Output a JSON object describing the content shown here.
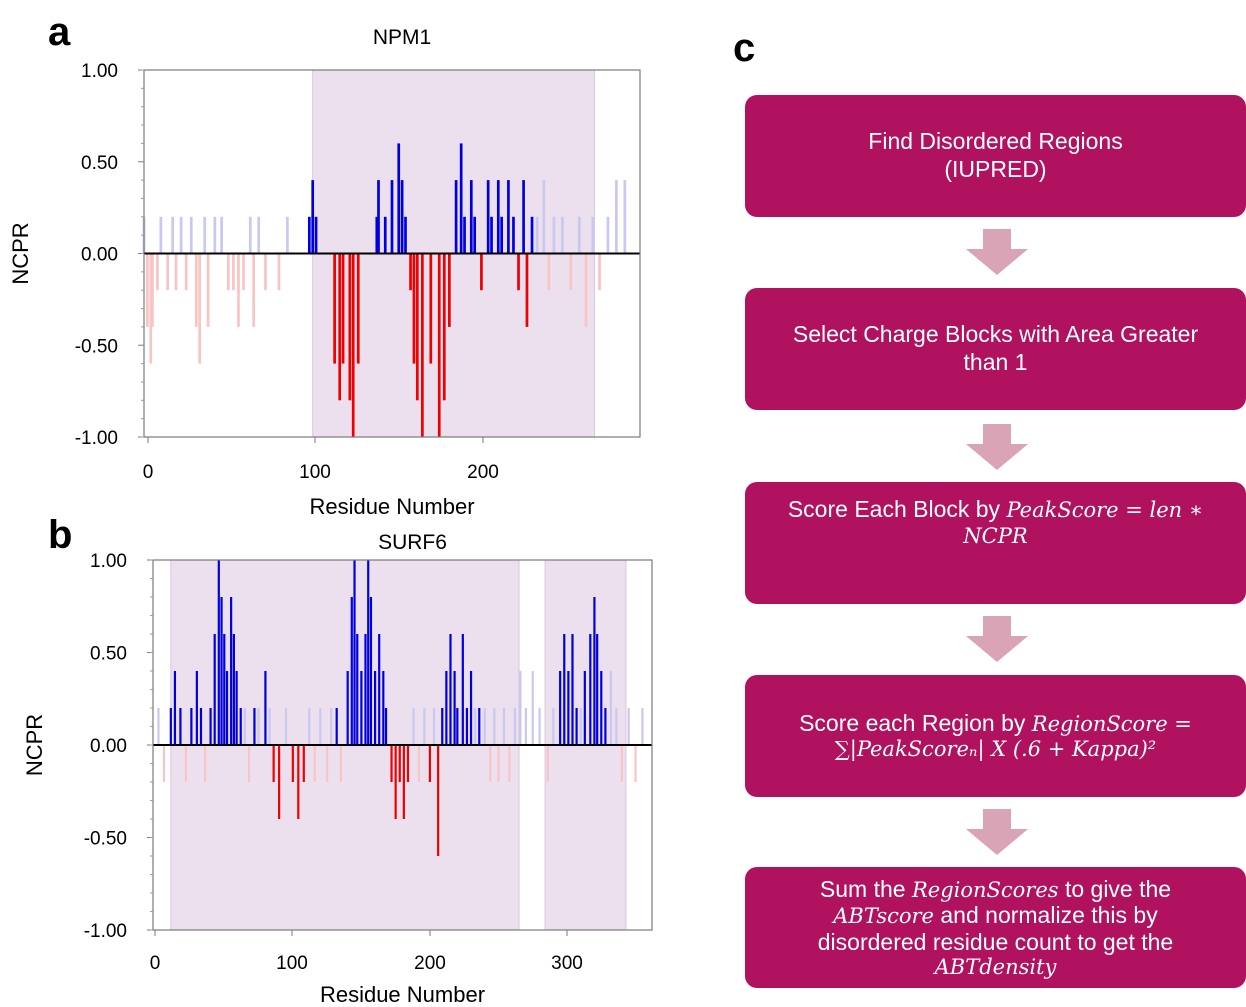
{
  "panels": {
    "a": "a",
    "b": "b",
    "c": "c"
  },
  "colors": {
    "pos_strong": "#0000dd",
    "pos_faint": "#c8c8f0",
    "neg_strong": "#ee0000",
    "neg_faint": "#f8c4c4",
    "shade": "#ede0ee",
    "shade_border": "#dcc4de",
    "flow_box": "#b0125f",
    "flow_arrow": "#d8a4b6"
  },
  "chart_data": [
    {
      "type": "bar",
      "title": "NPM1",
      "xlabel": "Residue Number",
      "ylabel": "NCPR",
      "xlim": [
        0,
        294
      ],
      "ylim": [
        -1,
        1
      ],
      "xticks": [
        "0",
        "100",
        "200"
      ],
      "yticks": [
        "1.00",
        "0.50",
        "0.00",
        "-0.50",
        "-1.00"
      ],
      "disordered_regions": [
        [
          100,
          267
        ]
      ],
      "bars": [
        [
          0,
          0.2,
          0
        ],
        [
          2,
          -0.4,
          0
        ],
        [
          4,
          -0.6,
          0
        ],
        [
          5,
          -0.4,
          0
        ],
        [
          8,
          -0.2,
          0
        ],
        [
          10,
          0.2,
          0
        ],
        [
          14,
          -0.2,
          0
        ],
        [
          17,
          0.2,
          0
        ],
        [
          19,
          -0.2,
          0
        ],
        [
          22,
          0.2,
          0
        ],
        [
          25,
          -0.2,
          0
        ],
        [
          28,
          0.2,
          0
        ],
        [
          31,
          -0.4,
          0
        ],
        [
          33,
          -0.6,
          0
        ],
        [
          36,
          0.2,
          0
        ],
        [
          38,
          -0.4,
          0
        ],
        [
          42,
          0.2,
          0
        ],
        [
          46,
          0.2,
          0
        ],
        [
          50,
          -0.2,
          0
        ],
        [
          53,
          -0.2,
          0
        ],
        [
          56,
          -0.4,
          0
        ],
        [
          59,
          -0.2,
          0
        ],
        [
          63,
          0.2,
          0
        ],
        [
          65,
          -0.4,
          0
        ],
        [
          68,
          0.2,
          0
        ],
        [
          72,
          -0.2,
          0
        ],
        [
          80,
          -0.2,
          0
        ],
        [
          85,
          0.2,
          0
        ],
        [
          98,
          0.2,
          1
        ],
        [
          100,
          0.4,
          1
        ],
        [
          102,
          0.2,
          1
        ],
        [
          113,
          -0.6,
          1
        ],
        [
          116,
          -0.8,
          1
        ],
        [
          118,
          -0.6,
          1
        ],
        [
          122,
          -0.8,
          1
        ],
        [
          124,
          -1.0,
          1
        ],
        [
          127,
          -0.6,
          1
        ],
        [
          138,
          0.2,
          1
        ],
        [
          139,
          0.4,
          1
        ],
        [
          143,
          0.2,
          1
        ],
        [
          147,
          0.4,
          1
        ],
        [
          151,
          0.6,
          1
        ],
        [
          153,
          0.4,
          1
        ],
        [
          155,
          0.2,
          1
        ],
        [
          158,
          -0.2,
          1
        ],
        [
          160,
          -0.6,
          1
        ],
        [
          162,
          -0.8,
          1
        ],
        [
          165,
          -1.0,
          1
        ],
        [
          170,
          -0.6,
          1
        ],
        [
          175,
          -1.0,
          1
        ],
        [
          178,
          -0.8,
          1
        ],
        [
          181,
          -0.4,
          1
        ],
        [
          185,
          0.4,
          1
        ],
        [
          188,
          0.6,
          1
        ],
        [
          190,
          0.2,
          1
        ],
        [
          194,
          0.4,
          1
        ],
        [
          196,
          0.2,
          1
        ],
        [
          200,
          -0.2,
          1
        ],
        [
          204,
          0.4,
          1
        ],
        [
          206,
          0.2,
          1
        ],
        [
          210,
          0.4,
          1
        ],
        [
          212,
          0.2,
          1
        ],
        [
          216,
          0.4,
          1
        ],
        [
          219,
          0.2,
          1
        ],
        [
          222,
          -0.2,
          1
        ],
        [
          225,
          0.4,
          1
        ],
        [
          227,
          -0.4,
          1
        ],
        [
          230,
          0.2,
          1
        ],
        [
          233,
          0.2,
          0
        ],
        [
          237,
          0.4,
          0
        ],
        [
          240,
          -0.2,
          0
        ],
        [
          243,
          0.2,
          0
        ],
        [
          248,
          0.2,
          0
        ],
        [
          253,
          -0.2,
          0
        ],
        [
          258,
          0.2,
          0
        ],
        [
          262,
          -0.4,
          0
        ],
        [
          266,
          0.2,
          0
        ],
        [
          270,
          -0.2,
          0
        ],
        [
          275,
          0.2,
          0
        ],
        [
          280,
          0.4,
          0
        ],
        [
          285,
          0.4,
          0
        ]
      ]
    },
    {
      "type": "bar",
      "title": "SURF6",
      "xlabel": "Residue Number",
      "ylabel": "NCPR",
      "xlim": [
        -2,
        362
      ],
      "ylim": [
        -1,
        1
      ],
      "xticks": [
        "0",
        "100",
        "200",
        "300"
      ],
      "yticks": [
        "1.00",
        "0.50",
        "0.00",
        "-0.50",
        "-1.00"
      ],
      "disordered_regions": [
        [
          11,
          265
        ],
        [
          284,
          343
        ]
      ],
      "bars": [
        [
          2,
          0.2,
          0
        ],
        [
          6,
          -0.2,
          0
        ],
        [
          11,
          0.2,
          1
        ],
        [
          14,
          0.4,
          1
        ],
        [
          18,
          0.2,
          1
        ],
        [
          22,
          -0.2,
          0
        ],
        [
          26,
          0.2,
          1
        ],
        [
          30,
          0.4,
          1
        ],
        [
          33,
          0.2,
          1
        ],
        [
          36,
          -0.2,
          0
        ],
        [
          40,
          0.2,
          1
        ],
        [
          43,
          0.6,
          1
        ],
        [
          46,
          1.0,
          1
        ],
        [
          48,
          0.8,
          1
        ],
        [
          50,
          0.6,
          1
        ],
        [
          52,
          0.4,
          1
        ],
        [
          55,
          0.8,
          1
        ],
        [
          57,
          0.6,
          1
        ],
        [
          59,
          0.4,
          1
        ],
        [
          62,
          0.2,
          1
        ],
        [
          65,
          0.2,
          0
        ],
        [
          68,
          -0.2,
          0
        ],
        [
          72,
          0.2,
          1
        ],
        [
          75,
          0.2,
          0
        ],
        [
          80,
          0.4,
          1
        ],
        [
          83,
          0.2,
          0
        ],
        [
          86,
          -0.2,
          1
        ],
        [
          90,
          -0.4,
          1
        ],
        [
          95,
          0.2,
          0
        ],
        [
          100,
          -0.2,
          1
        ],
        [
          104,
          -0.4,
          1
        ],
        [
          108,
          -0.2,
          1
        ],
        [
          112,
          0.2,
          0
        ],
        [
          116,
          -0.2,
          0
        ],
        [
          120,
          0.2,
          0
        ],
        [
          125,
          -0.2,
          0
        ],
        [
          128,
          0.2,
          0
        ],
        [
          132,
          0.2,
          1
        ],
        [
          135,
          -0.2,
          0
        ],
        [
          140,
          0.4,
          1
        ],
        [
          143,
          0.8,
          1
        ],
        [
          145,
          1.0,
          1
        ],
        [
          147,
          0.6,
          1
        ],
        [
          150,
          0.4,
          1
        ],
        [
          153,
          0.6,
          1
        ],
        [
          155,
          1.0,
          1
        ],
        [
          157,
          0.8,
          1
        ],
        [
          160,
          0.4,
          1
        ],
        [
          163,
          0.6,
          1
        ],
        [
          166,
          0.4,
          1
        ],
        [
          168,
          0.2,
          1
        ],
        [
          172,
          -0.2,
          1
        ],
        [
          175,
          -0.4,
          1
        ],
        [
          178,
          -0.2,
          1
        ],
        [
          181,
          -0.4,
          1
        ],
        [
          184,
          -0.2,
          1
        ],
        [
          188,
          0.2,
          0
        ],
        [
          192,
          -0.2,
          0
        ],
        [
          196,
          0.2,
          0
        ],
        [
          200,
          -0.2,
          1
        ],
        [
          203,
          0.2,
          0
        ],
        [
          206,
          -0.6,
          1
        ],
        [
          209,
          0.2,
          1
        ],
        [
          212,
          0.4,
          1
        ],
        [
          215,
          0.6,
          1
        ],
        [
          218,
          0.4,
          1
        ],
        [
          220,
          0.2,
          1
        ],
        [
          224,
          0.6,
          1
        ],
        [
          227,
          0.2,
          1
        ],
        [
          230,
          0.4,
          1
        ],
        [
          233,
          0.2,
          0
        ],
        [
          236,
          0.2,
          1
        ],
        [
          240,
          0.2,
          0
        ],
        [
          244,
          -0.2,
          0
        ],
        [
          247,
          0.2,
          0
        ],
        [
          250,
          -0.2,
          0
        ],
        [
          254,
          0.2,
          0
        ],
        [
          258,
          -0.2,
          0
        ],
        [
          262,
          0.2,
          0
        ],
        [
          266,
          0.4,
          0
        ],
        [
          270,
          0.2,
          0
        ],
        [
          275,
          0.4,
          0
        ],
        [
          280,
          0.2,
          0
        ],
        [
          286,
          -0.2,
          0
        ],
        [
          290,
          0.2,
          0
        ],
        [
          295,
          0.4,
          1
        ],
        [
          298,
          0.6,
          1
        ],
        [
          301,
          0.4,
          1
        ],
        [
          304,
          0.6,
          1
        ],
        [
          307,
          0.2,
          1
        ],
        [
          310,
          0.2,
          0
        ],
        [
          313,
          0.4,
          1
        ],
        [
          317,
          0.6,
          1
        ],
        [
          320,
          0.8,
          1
        ],
        [
          322,
          0.6,
          1
        ],
        [
          325,
          0.4,
          1
        ],
        [
          328,
          0.2,
          1
        ],
        [
          332,
          0.4,
          0
        ],
        [
          336,
          0.2,
          0
        ],
        [
          340,
          -0.2,
          0
        ],
        [
          345,
          0.2,
          0
        ],
        [
          350,
          -0.2,
          0
        ],
        [
          355,
          0.2,
          0
        ]
      ]
    }
  ],
  "flowchart": {
    "steps": [
      {
        "line1": "Find Disordered Regions",
        "line2": "(IUPRED)"
      },
      {
        "line1": "Select Charge Blocks with Area Greater",
        "line2": "than 1"
      },
      {
        "line1": "Score Each Block by",
        "formula": "PeakScore = len ∗",
        "line2": "NCPR"
      },
      {
        "line1": "Score each Region by",
        "formula": "RegionScore =",
        "line2": "∑|PeakScoreₙ| X (.6 + Kappa)²"
      },
      {
        "line1": "Sum the",
        "formula": "RegionScores",
        "line1b": "to give the",
        "line2": "ABTscore",
        "line2b": "and normalize this by",
        "line3": "disordered residue count to get the",
        "line4": "ABTdensity"
      }
    ]
  }
}
